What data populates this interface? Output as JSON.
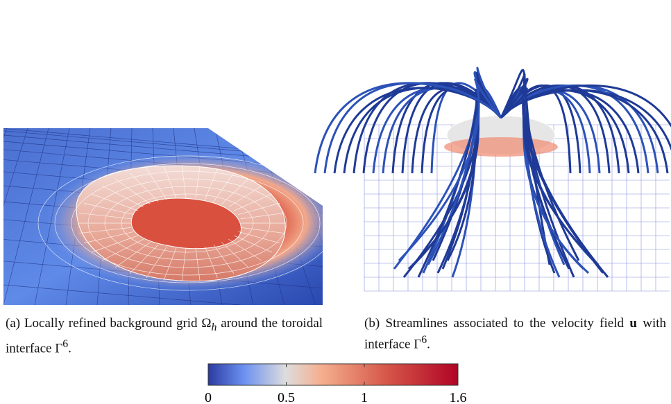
{
  "figures": [
    {
      "label": "(a)",
      "text": "Locally refined background grid",
      "symbol": "Ω",
      "subscript": "h",
      "text2": "around the toroidal interface",
      "symbol2": "Γ",
      "superscript": "6",
      "end": "."
    },
    {
      "label": "(b)",
      "text": "Streamlines associated to the velocity field",
      "symbol": "u",
      "text2": "with interface",
      "symbol2": "Γ",
      "superscript": "6",
      "end": "."
    }
  ],
  "colorbar": {
    "lim": [
      0,
      1.6
    ],
    "ticks": [
      0,
      0.5,
      1,
      1.6
    ]
  }
}
